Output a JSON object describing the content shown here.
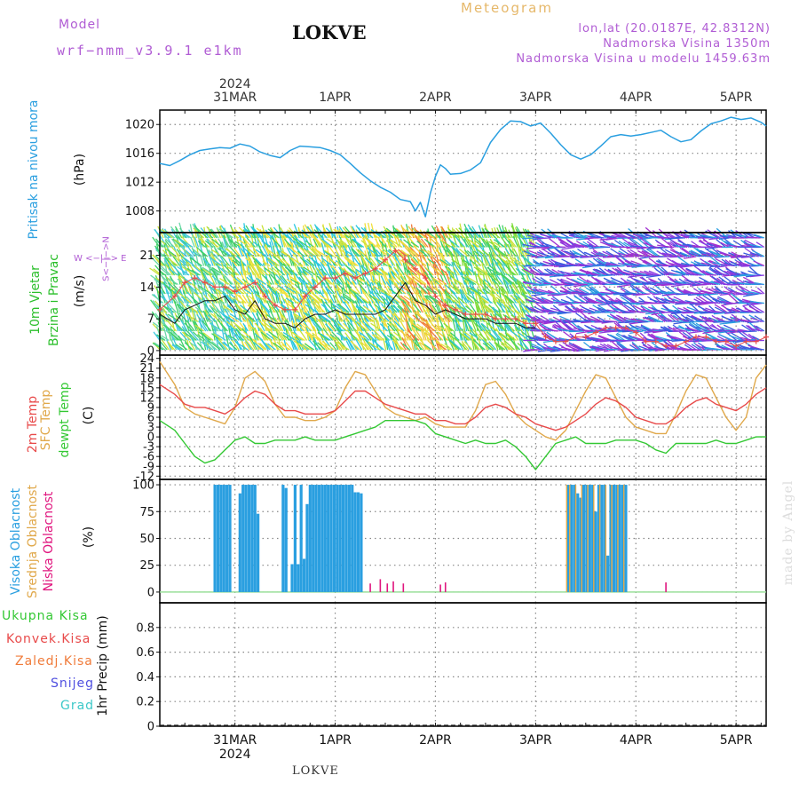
{
  "header": {
    "model_label": "Model",
    "model_value": "wrf−nmm_v3.9.1  e1km",
    "station": "LOKVE",
    "title": "Meteogram",
    "lonlat": "lon,lat (20.0187E, 42.8312N)",
    "elevation": "Nadmorska Visina 1350m",
    "model_elevation": "Nadmorska Visina u modelu 1459.63m",
    "footer_station": "LOKVE",
    "credit": "made by Angel"
  },
  "axis_dates": {
    "year": "2024",
    "labels": [
      "31MAR",
      "1APR",
      "2APR",
      "3APR",
      "4APR",
      "5APR"
    ]
  },
  "colors": {
    "pressure": "#2a9fe0",
    "temp2m": "#e84a4a",
    "sfc_temp": "#e0a84a",
    "dewpt": "#33c833",
    "high_cloud": "#2a9fe0",
    "mid_cloud": "#e0a84a",
    "low_cloud": "#e0157e",
    "wind_speed": "#111111",
    "wind_gust": "#e84a4a",
    "wind_label": "#b05cd4"
  },
  "panels": {
    "pressure": {
      "title": "Pritisak na nivou mora",
      "unit": "(hPa)"
    },
    "wind": {
      "title1": "10m Vjetar",
      "title2": "Brzina i Pravac",
      "unit": "(m/s)",
      "compass": "W  <−|−>  E",
      "compass_v": "S<−|−>N"
    },
    "temp": {
      "t1": "2m Temp",
      "t2": "SFC Temp",
      "t3": "dewpt Temp",
      "unit": "(C)"
    },
    "cloud": {
      "c1": "Visoka Oblacnost",
      "c2": "Srednja Oblacnost",
      "c3": "Niska Oblacnost",
      "unit": "(%)"
    },
    "precip": {
      "p1": "Ukupna Kisa",
      "p2": "Konvek.Kisa",
      "p3": "Zaledj.Kisa",
      "p4": "Snijeg",
      "p5": "Grad",
      "unit": "1hr Precip (mm)"
    }
  },
  "chart_data": [
    {
      "type": "line",
      "title": "Pritisak na nivou mora",
      "ylabel": "(hPa)",
      "ylim": [
        1005,
        1022
      ],
      "yticks": [
        1008,
        1012,
        1016,
        1020
      ],
      "x_unit": "days since 31MAR 00UTC",
      "xlim": [
        -0.75,
        5.3
      ],
      "series": [
        {
          "name": "Pritisak na nivou mora",
          "x": [
            -0.75,
            -0.65,
            -0.55,
            -0.45,
            -0.35,
            -0.25,
            -0.15,
            -0.05,
            0.05,
            0.15,
            0.25,
            0.35,
            0.45,
            0.55,
            0.65,
            0.75,
            0.85,
            0.95,
            1.05,
            1.15,
            1.25,
            1.35,
            1.45,
            1.55,
            1.65,
            1.75,
            1.8,
            1.85,
            1.9,
            1.95,
            2.0,
            2.05,
            2.1,
            2.15,
            2.25,
            2.35,
            2.45,
            2.55,
            2.65,
            2.75,
            2.85,
            2.95,
            3.05,
            3.15,
            3.25,
            3.35,
            3.45,
            3.55,
            3.65,
            3.75,
            3.85,
            3.95,
            4.05,
            4.15,
            4.25,
            4.35,
            4.45,
            4.55,
            4.65,
            4.75,
            4.85,
            4.95,
            5.05,
            5.15,
            5.25,
            5.3
          ],
          "values": [
            1014.6,
            1014.3,
            1015.0,
            1015.8,
            1016.4,
            1016.6,
            1016.8,
            1016.7,
            1017.3,
            1017.0,
            1016.2,
            1015.7,
            1015.4,
            1016.4,
            1017.0,
            1016.9,
            1016.8,
            1016.4,
            1015.8,
            1014.6,
            1013.3,
            1012.2,
            1011.3,
            1010.6,
            1009.6,
            1009.3,
            1008.0,
            1009.2,
            1007.2,
            1010.5,
            1012.8,
            1014.4,
            1013.9,
            1013.1,
            1013.2,
            1013.7,
            1014.7,
            1017.5,
            1019.3,
            1020.5,
            1020.4,
            1019.8,
            1020.2,
            1018.8,
            1017.2,
            1015.8,
            1015.2,
            1015.8,
            1017.0,
            1018.3,
            1018.6,
            1018.4,
            1018.6,
            1018.9,
            1019.2,
            1018.3,
            1017.6,
            1017.9,
            1019.1,
            1020.1,
            1020.5,
            1021.0,
            1020.7,
            1020.9,
            1020.3,
            1019.8
          ]
        }
      ]
    },
    {
      "type": "line",
      "title": "10m Vjetar Brzina i Pravac",
      "ylabel": "(m/s)",
      "ylim": [
        -1,
        26
      ],
      "yticks": [
        0,
        7,
        14,
        21
      ],
      "series": [
        {
          "name": "speed",
          "x": [
            -0.75,
            -0.6,
            -0.5,
            -0.4,
            -0.3,
            -0.2,
            -0.1,
            0.0,
            0.1,
            0.2,
            0.3,
            0.4,
            0.5,
            0.6,
            0.7,
            0.8,
            0.9,
            1.0,
            1.1,
            1.2,
            1.3,
            1.4,
            1.5,
            1.6,
            1.7,
            1.8,
            1.9,
            2.0,
            2.1,
            2.2,
            2.3,
            2.4,
            2.5,
            2.6,
            2.7,
            2.8,
            2.9,
            3.0
          ],
          "values": [
            8,
            6,
            9,
            10,
            11,
            11,
            12,
            9,
            8,
            11,
            7,
            6,
            6,
            5,
            7,
            8,
            8,
            9,
            8,
            8,
            8,
            8,
            9,
            12,
            15,
            11,
            10,
            8,
            9,
            8,
            7,
            7,
            7,
            6,
            6,
            6,
            5,
            5
          ]
        },
        {
          "name": "gust",
          "x": [
            -0.75,
            -0.6,
            -0.5,
            -0.4,
            -0.3,
            -0.2,
            -0.1,
            0.0,
            0.1,
            0.2,
            0.3,
            0.4,
            0.5,
            0.6,
            0.7,
            0.8,
            0.9,
            1.0,
            1.1,
            1.2,
            1.3,
            1.4,
            1.5,
            1.6,
            1.7,
            1.8,
            1.9,
            2.0,
            2.1,
            2.2,
            2.3,
            2.4,
            2.5,
            2.6,
            2.7,
            2.8,
            2.9,
            3.0,
            3.1,
            3.2,
            3.3,
            3.4,
            3.5,
            3.6,
            3.7,
            3.8,
            3.9,
            4.0,
            4.1,
            4.2,
            4.3,
            4.4,
            4.5,
            4.6,
            4.7,
            4.8,
            4.9,
            5.0,
            5.1,
            5.2,
            5.3
          ],
          "values": [
            9,
            12,
            15,
            16,
            15,
            14,
            14,
            13,
            14,
            15,
            12,
            10,
            9,
            9,
            12,
            14,
            16,
            16,
            17,
            16,
            17,
            18,
            20,
            22,
            20,
            18,
            16,
            12,
            10,
            9,
            8,
            8,
            8,
            7,
            7,
            7,
            6,
            6,
            3,
            2,
            2,
            3,
            3,
            4,
            5,
            5,
            5,
            4,
            2,
            2,
            1,
            1,
            2,
            3,
            3,
            2,
            2,
            1,
            2,
            2,
            3
          ]
        }
      ]
    },
    {
      "type": "line",
      "title": "2m Temp / SFC Temp / dewpt Temp",
      "ylabel": "(C)",
      "ylim": [
        -13,
        25
      ],
      "yticks": [
        -12,
        -9,
        -6,
        -3,
        0,
        3,
        6,
        9,
        12,
        15,
        18,
        21,
        24
      ],
      "series": [
        {
          "name": "2m Temp",
          "x": [
            -0.75,
            -0.6,
            -0.5,
            -0.4,
            -0.3,
            -0.2,
            -0.1,
            0.0,
            0.1,
            0.2,
            0.3,
            0.4,
            0.5,
            0.6,
            0.7,
            0.8,
            0.9,
            1.0,
            1.1,
            1.2,
            1.3,
            1.4,
            1.5,
            1.6,
            1.7,
            1.8,
            1.9,
            2.0,
            2.1,
            2.2,
            2.3,
            2.4,
            2.5,
            2.6,
            2.7,
            2.8,
            2.9,
            3.0,
            3.1,
            3.2,
            3.3,
            3.4,
            3.5,
            3.6,
            3.7,
            3.8,
            3.9,
            4.0,
            4.1,
            4.2,
            4.3,
            4.4,
            4.5,
            4.6,
            4.7,
            4.8,
            4.9,
            5.0,
            5.1,
            5.2,
            5.3
          ],
          "values": [
            16,
            13,
            10,
            9,
            9,
            8,
            7,
            9,
            12,
            14,
            13,
            10,
            8,
            8,
            7,
            7,
            7,
            8,
            11,
            14,
            14,
            12,
            10,
            9,
            8,
            7,
            7,
            5,
            5,
            4,
            4,
            6,
            9,
            10,
            9,
            7,
            6,
            4,
            3,
            2,
            3,
            5,
            7,
            10,
            12,
            11,
            9,
            6,
            5,
            4,
            4,
            6,
            9,
            11,
            12,
            10,
            9,
            8,
            10,
            13,
            15
          ]
        },
        {
          "name": "SFC Temp",
          "x": [
            -0.75,
            -0.6,
            -0.5,
            -0.4,
            -0.3,
            -0.2,
            -0.1,
            0.0,
            0.1,
            0.2,
            0.3,
            0.4,
            0.5,
            0.6,
            0.7,
            0.8,
            0.9,
            1.0,
            1.1,
            1.2,
            1.3,
            1.4,
            1.5,
            1.6,
            1.7,
            1.8,
            1.9,
            2.0,
            2.1,
            2.2,
            2.3,
            2.4,
            2.5,
            2.6,
            2.7,
            2.8,
            2.9,
            3.0,
            3.1,
            3.2,
            3.3,
            3.4,
            3.5,
            3.6,
            3.7,
            3.8,
            3.9,
            4.0,
            4.1,
            4.2,
            4.3,
            4.4,
            4.5,
            4.6,
            4.7,
            4.8,
            4.9,
            5.0,
            5.1,
            5.2,
            5.3
          ],
          "values": [
            23,
            16,
            9,
            7,
            6,
            5,
            4,
            9,
            18,
            20,
            17,
            10,
            6,
            6,
            5,
            5,
            6,
            8,
            15,
            20,
            19,
            14,
            9,
            7,
            6,
            5,
            6,
            4,
            3,
            3,
            3,
            8,
            16,
            17,
            13,
            7,
            4,
            2,
            0,
            -1,
            2,
            8,
            14,
            19,
            18,
            12,
            6,
            3,
            2,
            1,
            1,
            7,
            14,
            19,
            18,
            12,
            6,
            2,
            6,
            18,
            22
          ]
        },
        {
          "name": "dewpt Temp",
          "x": [
            -0.75,
            -0.6,
            -0.5,
            -0.4,
            -0.3,
            -0.2,
            -0.1,
            0.0,
            0.1,
            0.2,
            0.3,
            0.4,
            0.5,
            0.6,
            0.7,
            0.8,
            0.9,
            1.0,
            1.1,
            1.2,
            1.3,
            1.4,
            1.5,
            1.6,
            1.7,
            1.8,
            1.9,
            2.0,
            2.1,
            2.2,
            2.3,
            2.4,
            2.5,
            2.6,
            2.7,
            2.8,
            2.9,
            3.0,
            3.1,
            3.2,
            3.3,
            3.4,
            3.5,
            3.6,
            3.7,
            3.8,
            3.9,
            4.0,
            4.1,
            4.2,
            4.3,
            4.4,
            4.5,
            4.6,
            4.7,
            4.8,
            4.9,
            5.0,
            5.1,
            5.2,
            5.3
          ],
          "values": [
            5,
            2,
            -2,
            -6,
            -8,
            -7,
            -4,
            -1,
            0,
            -2,
            -2,
            -1,
            -1,
            -1,
            0,
            -1,
            -1,
            -1,
            0,
            1,
            2,
            3,
            5,
            5,
            5,
            5,
            4,
            1,
            0,
            -1,
            -2,
            -1,
            -2,
            -2,
            -1,
            -3,
            -6,
            -10,
            -6,
            -2,
            -1,
            0,
            -2,
            -2,
            -2,
            -1,
            -1,
            -1,
            -2,
            -4,
            -5,
            -2,
            -2,
            -2,
            -2,
            -1,
            -2,
            -2,
            -1,
            0,
            0
          ]
        }
      ]
    },
    {
      "type": "bar",
      "title": "Oblacnost",
      "ylabel": "(%)",
      "ylim": [
        -10,
        105
      ],
      "yticks": [
        0,
        25,
        50,
        75,
        100
      ],
      "series": [
        {
          "name": "Visoka Oblacnost",
          "x": [
            -0.2,
            -0.17,
            -0.14,
            -0.11,
            -0.08,
            -0.05,
            0.05,
            0.08,
            0.11,
            0.14,
            0.17,
            0.2,
            0.23,
            0.48,
            0.51,
            0.57,
            0.6,
            0.63,
            0.66,
            0.69,
            0.72,
            0.75,
            0.78,
            0.81,
            0.84,
            0.87,
            0.9,
            0.93,
            0.96,
            0.99,
            1.02,
            1.05,
            1.08,
            1.11,
            1.14,
            1.17,
            1.2,
            1.23,
            1.26,
            3.33,
            3.36,
            3.39,
            3.42,
            3.45,
            3.48,
            3.51,
            3.54,
            3.57,
            3.6,
            3.63,
            3.66,
            3.69,
            3.72,
            3.75,
            3.78,
            3.81,
            3.84,
            3.87,
            3.9
          ],
          "values": [
            100,
            100,
            100,
            100,
            100,
            100,
            92,
            100,
            100,
            100,
            100,
            100,
            73,
            100,
            97,
            26,
            100,
            26,
            100,
            31,
            82,
            100,
            100,
            100,
            100,
            100,
            100,
            100,
            100,
            100,
            100,
            100,
            100,
            100,
            100,
            100,
            93,
            93,
            92,
            100,
            100,
            100,
            92,
            88,
            100,
            100,
            100,
            100,
            75,
            100,
            100,
            100,
            34,
            100,
            100,
            100,
            100,
            100,
            100
          ]
        },
        {
          "name": "Srednja Oblacnost",
          "x": [
            3.33,
            3.36,
            3.42,
            3.48,
            3.54,
            3.6,
            3.66,
            3.72,
            3.78,
            3.84,
            3.9
          ],
          "values": [
            100,
            100,
            100,
            100,
            100,
            100,
            100,
            100,
            100,
            100,
            100
          ]
        },
        {
          "name": "Niska Oblacnost",
          "x": [
            1.35,
            1.45,
            1.52,
            1.58,
            1.68,
            2.05,
            2.1,
            4.3
          ],
          "values": [
            8,
            12,
            8,
            10,
            8,
            7,
            9,
            9
          ]
        }
      ]
    },
    {
      "type": "line",
      "title": "1hr Precip",
      "ylabel": "1hr Precip (mm)",
      "ylim": [
        0,
        1.0
      ],
      "yticks": [
        0,
        0.2,
        0.4,
        0.6,
        0.8
      ],
      "series": [
        {
          "name": "Ukupna Kisa",
          "values": []
        },
        {
          "name": "Konvek.Kisa",
          "values": []
        },
        {
          "name": "Zaledj.Kisa",
          "values": []
        },
        {
          "name": "Snijeg",
          "values": []
        },
        {
          "name": "Grad",
          "values": []
        }
      ]
    }
  ]
}
